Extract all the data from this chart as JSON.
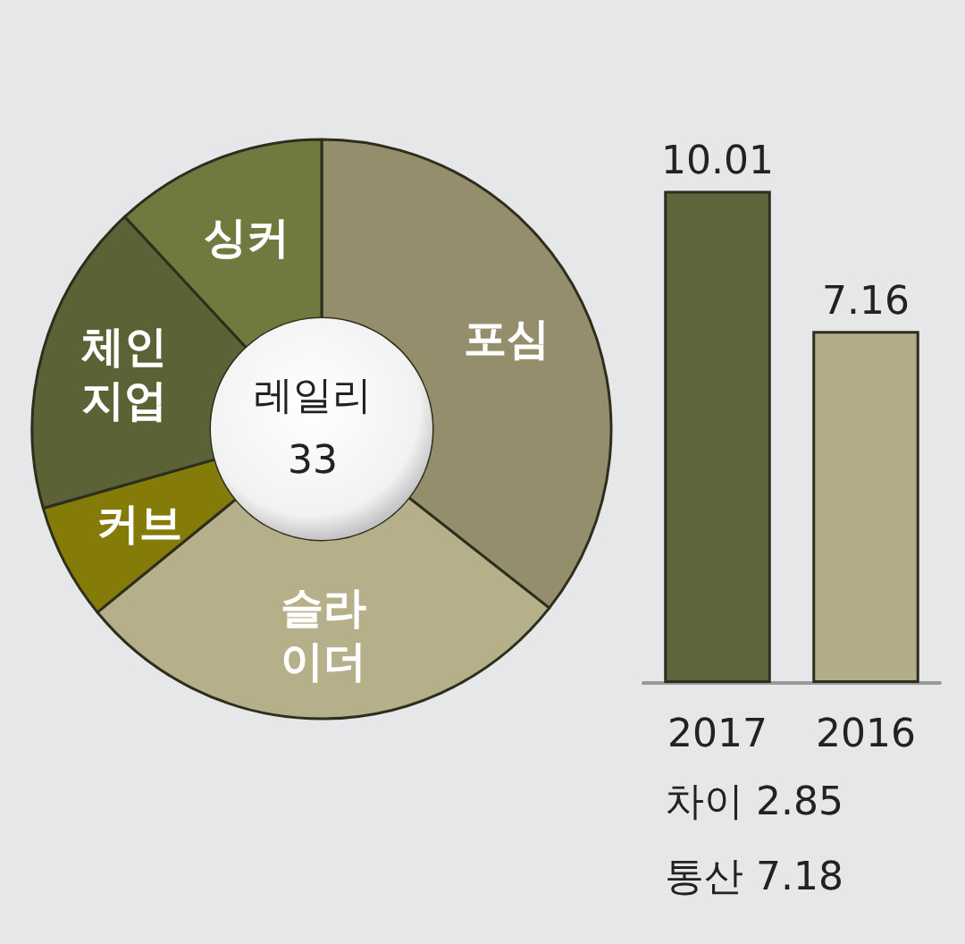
{
  "chart_data": [
    {
      "type": "donut",
      "title": "레일리",
      "subtitle": "33",
      "categories": [
        "포심",
        "슬라이더",
        "커브",
        "체인지업",
        "싱커"
      ],
      "values": [
        35.6,
        28.5,
        6.5,
        17.5,
        11.9
      ],
      "colors": [
        "#958e6c",
        "#b5b08a",
        "#857b08",
        "#5a6236",
        "#72793f"
      ]
    },
    {
      "type": "bar",
      "categories": [
        "2017",
        "2016"
      ],
      "values": [
        10.01,
        7.16
      ],
      "colors": [
        "#5d653a",
        "#b2ac88"
      ],
      "data_labels": true,
      "annotations": [
        "차이 2.85",
        "통산 7.18"
      ]
    }
  ]
}
